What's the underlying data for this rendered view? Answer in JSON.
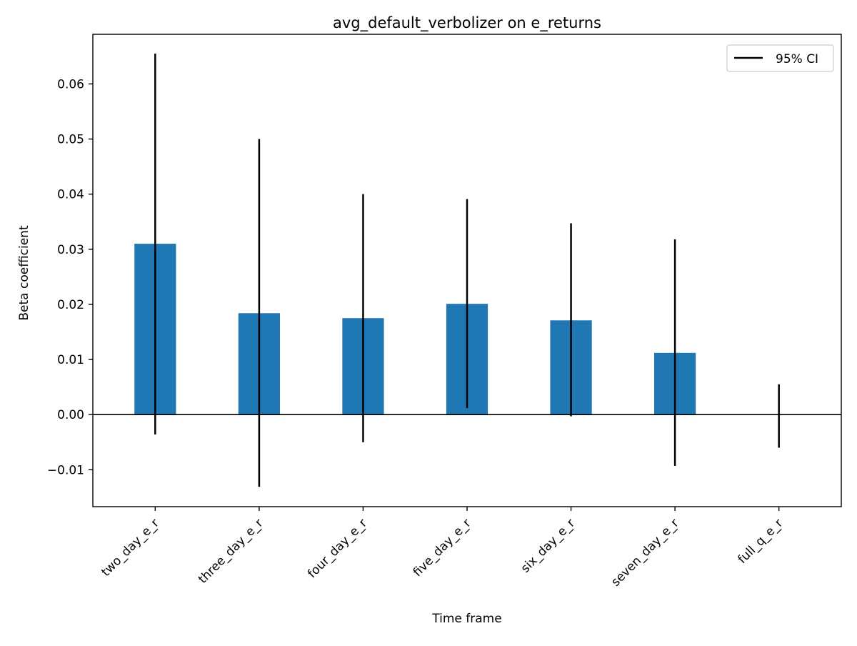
{
  "chart_data": {
    "type": "bar",
    "title": "avg_default_verbolizer on e_returns",
    "xlabel": "Time frame",
    "ylabel": "Beta coefficient",
    "categories": [
      "two_day_e_r",
      "three_day_e_r",
      "four_day_e_r",
      "five_day_e_r",
      "six_day_e_r",
      "seven_day_e_r",
      "full_q_e_r"
    ],
    "values": [
      0.031,
      0.0184,
      0.0175,
      0.0201,
      0.0171,
      0.0112,
      0.0
    ],
    "ci_lower": [
      -0.0036,
      -0.0131,
      -0.005,
      0.0012,
      -0.0003,
      -0.0093,
      -0.006
    ],
    "ci_upper": [
      0.0655,
      0.05,
      0.04,
      0.0391,
      0.0347,
      0.0318,
      0.0055
    ],
    "ylim": [
      -0.0167,
      0.069
    ],
    "yticks": [
      -0.01,
      0.0,
      0.01,
      0.02,
      0.03,
      0.04,
      0.05,
      0.06
    ],
    "ytick_labels": [
      "−0.01",
      "0.00",
      "0.01",
      "0.02",
      "0.03",
      "0.04",
      "0.05",
      "0.06"
    ],
    "legend": {
      "position": "top-right",
      "entries": [
        {
          "label": "95% CI",
          "color": "#000000",
          "style": "line"
        }
      ]
    },
    "colors": {
      "bar": "#1f77b4",
      "errorbar": "#000000",
      "zero_line": "#000000"
    },
    "grid": false
  }
}
